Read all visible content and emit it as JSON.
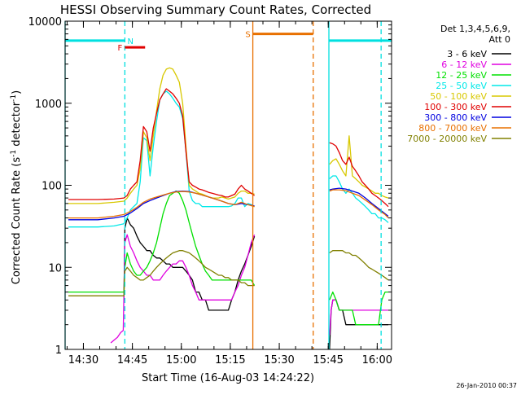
{
  "chart_data": {
    "type": "line",
    "title": "HESSI Observing Summary Count Rates, Corrected",
    "xlabel": "Start Time (16-Aug-03 14:24:22)",
    "ylabel_main": "Corrected Count Rate (s",
    "ylabel_sup1": "-1",
    "ylabel_mid": " detector",
    "ylabel_sup2": "-1",
    "ylabel_end": ")",
    "xlim_minutes": [
      0,
      100
    ],
    "ylim": [
      1,
      10000
    ],
    "y_scale": "log",
    "grid": false,
    "legend_placement": "right",
    "x_ticks": [
      {
        "label": "14:30",
        "x": 5.6
      },
      {
        "label": "14:45",
        "x": 20.6
      },
      {
        "label": "15:00",
        "x": 35.6
      },
      {
        "label": "15:15",
        "x": 50.6
      },
      {
        "label": "15:30",
        "x": 65.6
      },
      {
        "label": "15:45",
        "x": 80.6
      },
      {
        "label": "16:00",
        "x": 95.6
      }
    ],
    "y_ticks": [
      {
        "label": "1",
        "value": 1
      },
      {
        "label": "10",
        "value": 10
      },
      {
        "label": "100",
        "value": 100
      },
      {
        "label": "1000",
        "value": 1000
      },
      {
        "label": "10000",
        "value": 10000
      }
    ],
    "legend": {
      "header1": "Det 1,3,4,5,6,9,",
      "header2": "Att 0",
      "entries": [
        {
          "label": "3 - 6 keV",
          "color": "#000000"
        },
        {
          "label": "6 - 12 keV",
          "color": "#e000e0"
        },
        {
          "label": "12 - 25 keV",
          "color": "#00e000"
        },
        {
          "label": "25 - 50 keV",
          "color": "#00e8e8"
        },
        {
          "label": "50 - 100 keV",
          "color": "#d8c800"
        },
        {
          "label": "100 - 300 keV",
          "color": "#e00000"
        },
        {
          "label": "300 - 800 keV",
          "color": "#0000e0"
        },
        {
          "label": "800 - 7000 keV",
          "color": "#e87000"
        },
        {
          "label": "7000 - 20000 keV",
          "color": "#808000"
        }
      ]
    },
    "flags": [
      {
        "label": "N",
        "color": "#00e0e0",
        "x1": 0,
        "x2": 18.3,
        "y": 5800,
        "label_x": 20.0
      },
      {
        "label": "N",
        "color": "#00e0e0",
        "x1": 80.8,
        "x2": 100,
        "y": 5800,
        "label_x": null
      },
      {
        "label": "F",
        "color": "#e00000",
        "x1": 18.3,
        "x2": 24.5,
        "y": 4800,
        "label_x": 16.8
      },
      {
        "label": "S",
        "color": "#e87000",
        "x1": 57.5,
        "x2": 76.0,
        "y": 7000,
        "label_x": 56.0
      }
    ],
    "vlines": [
      {
        "x": 0.0,
        "color": "#00e0e0",
        "dashed": false
      },
      {
        "x": 18.3,
        "color": "#00e0e0",
        "dashed": true
      },
      {
        "x": 57.5,
        "color": "#e87000",
        "dashed": false
      },
      {
        "x": 76.0,
        "color": "#e87000",
        "dashed": true
      },
      {
        "x": 80.8,
        "color": "#00e0e0",
        "dashed": false
      },
      {
        "x": 96.8,
        "color": "#00e0e0",
        "dashed": true
      }
    ],
    "series": [
      {
        "name": "3 - 6 keV",
        "color": "#000000",
        "x": [
          1,
          18,
          18.3,
          19,
          20,
          21,
          22,
          23,
          24,
          25,
          26,
          27,
          28,
          29,
          30,
          31,
          32,
          33,
          34,
          35,
          36,
          37,
          38,
          39,
          40,
          41,
          42,
          43,
          44,
          45,
          46,
          47,
          48,
          49,
          50,
          51,
          52,
          53,
          54,
          55,
          56,
          57,
          58,
          81,
          81.5,
          82,
          83,
          84,
          85,
          86,
          87,
          88,
          89,
          90,
          91,
          92,
          93,
          94,
          95,
          96,
          97,
          98,
          99
        ],
        "y": [
          4,
          4,
          30,
          40,
          33,
          30,
          24,
          20,
          18,
          16,
          16,
          14,
          13,
          13,
          12,
          11,
          11,
          10,
          10,
          10,
          10,
          9,
          8,
          7,
          5,
          5,
          4,
          4,
          3,
          3,
          3,
          3,
          3,
          3,
          3,
          4,
          5,
          7,
          9,
          11,
          14,
          18,
          24,
          1,
          3,
          4,
          4,
          3,
          3,
          2,
          2,
          2,
          2,
          2,
          2,
          2,
          2,
          2,
          2,
          2,
          2,
          2,
          2
        ]
      },
      {
        "name": "6 - 12 keV",
        "color": "#e000e0",
        "x": [
          14,
          15,
          16,
          17,
          17.8,
          18.3,
          19,
          20,
          21,
          22,
          23,
          24,
          25,
          26,
          27,
          28,
          29,
          30,
          31,
          32,
          33,
          34,
          35,
          36,
          37,
          38,
          39,
          40,
          41,
          42,
          43,
          44,
          45,
          46,
          47,
          48,
          49,
          50,
          51,
          52,
          53,
          54,
          55,
          56,
          57,
          58,
          81,
          81.5,
          82,
          83,
          84,
          85,
          86,
          87,
          88,
          89,
          90,
          91,
          92,
          93,
          94,
          95,
          96,
          97,
          98,
          99
        ],
        "y": [
          1.2,
          1.3,
          1.4,
          1.6,
          1.7,
          20,
          25,
          18,
          15,
          12,
          10,
          9,
          8,
          8,
          7,
          7,
          7,
          8,
          9,
          10,
          11,
          11,
          12,
          12,
          10,
          8,
          6,
          5,
          4,
          4,
          4,
          4,
          4,
          4,
          4,
          4,
          4,
          4,
          4,
          5,
          6,
          8,
          10,
          14,
          20,
          25,
          1.5,
          3,
          4,
          4,
          3,
          3,
          3,
          3,
          3,
          3,
          3,
          3,
          3,
          3,
          3,
          3,
          3,
          3,
          3,
          3
        ]
      },
      {
        "name": "12 - 25 keV",
        "color": "#00e000",
        "x": [
          1,
          10,
          18,
          18.3,
          19,
          20,
          21,
          22,
          23,
          24,
          25,
          26,
          27,
          28,
          29,
          30,
          31,
          32,
          33,
          34,
          35,
          36,
          37,
          38,
          39,
          40,
          41,
          42,
          43,
          44,
          45,
          46,
          47,
          48,
          49,
          50,
          51,
          52,
          53,
          54,
          55,
          56,
          57,
          58,
          81,
          82,
          83,
          84,
          85,
          86,
          87,
          88,
          89,
          90,
          91,
          92,
          93,
          94,
          95,
          96,
          97,
          98,
          99
        ],
        "y": [
          5,
          5,
          5,
          10,
          15,
          11,
          9,
          8,
          8,
          9,
          10,
          12,
          15,
          20,
          30,
          45,
          60,
          75,
          80,
          85,
          80,
          65,
          50,
          35,
          25,
          18,
          14,
          11,
          9,
          8,
          7,
          7,
          7,
          7,
          7,
          7,
          7,
          7,
          7,
          7,
          7,
          7,
          7,
          6,
          4,
          5,
          4,
          3,
          3,
          3,
          3,
          3,
          2,
          2,
          2,
          2,
          2,
          2,
          2,
          2,
          4,
          5,
          5
        ]
      },
      {
        "name": "25 - 50 keV",
        "color": "#00e8e8",
        "x": [
          1,
          5,
          10,
          15,
          18,
          19,
          20,
          21,
          22,
          23,
          24,
          25,
          26,
          27,
          28,
          29,
          30,
          31,
          32,
          33,
          34,
          35,
          36,
          37,
          38,
          39,
          40,
          41,
          42,
          43,
          44,
          45,
          46,
          47,
          48,
          49,
          50,
          51,
          52,
          53,
          54,
          55,
          56,
          57,
          58,
          81,
          82,
          83,
          84,
          85,
          86,
          87,
          88,
          89,
          90,
          91,
          92,
          93,
          94,
          95,
          96,
          97,
          98,
          99
        ],
        "y": [
          31,
          31,
          31,
          32,
          34,
          40,
          50,
          55,
          60,
          110,
          380,
          350,
          130,
          300,
          600,
          1100,
          1300,
          1400,
          1300,
          1150,
          1000,
          900,
          650,
          260,
          85,
          65,
          60,
          60,
          55,
          55,
          55,
          55,
          55,
          55,
          55,
          55,
          55,
          56,
          60,
          70,
          70,
          55,
          60,
          58,
          55,
          120,
          130,
          130,
          110,
          90,
          80,
          90,
          80,
          70,
          65,
          60,
          55,
          50,
          45,
          45,
          40,
          40,
          38,
          35
        ]
      },
      {
        "name": "50 - 100 keV",
        "color": "#d8c800",
        "x": [
          1,
          5,
          10,
          15,
          18,
          19,
          20,
          21,
          22,
          23,
          24,
          25,
          26,
          27,
          28,
          29,
          30,
          31,
          32,
          33,
          34,
          35,
          36,
          37,
          38,
          39,
          40,
          41,
          42,
          43,
          44,
          45,
          46,
          47,
          48,
          49,
          50,
          51,
          52,
          53,
          54,
          55,
          56,
          57,
          58,
          81,
          82,
          83,
          84,
          85,
          86,
          87,
          88,
          89,
          90,
          91,
          92,
          93,
          94,
          95,
          96,
          97,
          98,
          99
        ],
        "y": [
          60,
          60,
          60,
          62,
          64,
          70,
          80,
          90,
          100,
          160,
          450,
          380,
          200,
          400,
          800,
          1500,
          2200,
          2600,
          2700,
          2600,
          2200,
          1800,
          1000,
          300,
          100,
          90,
          85,
          80,
          78,
          75,
          72,
          70,
          70,
          70,
          72,
          70,
          68,
          70,
          72,
          80,
          85,
          85,
          80,
          80,
          78,
          180,
          200,
          210,
          180,
          150,
          130,
          400,
          130,
          120,
          110,
          100,
          95,
          90,
          85,
          80,
          80,
          75,
          72,
          70
        ]
      },
      {
        "name": "100 - 300 keV",
        "color": "#e00000",
        "x": [
          1,
          5,
          10,
          15,
          18,
          19,
          20,
          21,
          22,
          23,
          24,
          25,
          26,
          27,
          28,
          29,
          30,
          31,
          32,
          33,
          34,
          35,
          36,
          37,
          38,
          39,
          40,
          41,
          42,
          43,
          44,
          45,
          46,
          47,
          48,
          49,
          50,
          51,
          52,
          53,
          54,
          55,
          56,
          57,
          58,
          81,
          82,
          83,
          84,
          85,
          86,
          87,
          88,
          89,
          90,
          91,
          92,
          93,
          94,
          95,
          96,
          97,
          98,
          99
        ],
        "y": [
          67,
          67,
          67,
          68,
          70,
          75,
          90,
          100,
          110,
          200,
          520,
          450,
          260,
          500,
          750,
          1100,
          1300,
          1500,
          1400,
          1300,
          1150,
          1000,
          700,
          260,
          110,
          100,
          95,
          90,
          88,
          85,
          82,
          80,
          78,
          76,
          75,
          72,
          72,
          75,
          78,
          90,
          100,
          90,
          85,
          80,
          75,
          330,
          320,
          300,
          250,
          200,
          180,
          220,
          170,
          150,
          130,
          110,
          100,
          90,
          80,
          75,
          70,
          65,
          60,
          55
        ]
      },
      {
        "name": "300 - 800 keV",
        "color": "#0000e0",
        "x": [
          1,
          5,
          10,
          15,
          18,
          20,
          22,
          24,
          26,
          28,
          30,
          32,
          34,
          36,
          38,
          40,
          42,
          44,
          46,
          48,
          50,
          52,
          54,
          56,
          58,
          81,
          82,
          84,
          86,
          88,
          90,
          92,
          94,
          96,
          98,
          99
        ],
        "y": [
          38,
          38,
          38,
          40,
          42,
          46,
          52,
          60,
          65,
          70,
          75,
          80,
          84,
          85,
          84,
          80,
          76,
          72,
          68,
          64,
          60,
          58,
          60,
          58,
          56,
          88,
          90,
          92,
          90,
          85,
          80,
          70,
          60,
          52,
          45,
          42
        ]
      },
      {
        "name": "800 - 7000 keV",
        "color": "#e87000",
        "x": [
          1,
          5,
          10,
          15,
          18,
          20,
          22,
          24,
          26,
          28,
          30,
          32,
          34,
          36,
          38,
          40,
          42,
          44,
          46,
          48,
          50,
          52,
          54,
          56,
          58,
          81,
          82,
          84,
          86,
          88,
          90,
          92,
          94,
          96,
          98,
          99
        ],
        "y": [
          40,
          40,
          40,
          42,
          44,
          48,
          54,
          62,
          68,
          72,
          76,
          80,
          83,
          84,
          83,
          80,
          76,
          72,
          68,
          64,
          60,
          58,
          62,
          58,
          55,
          85,
          88,
          88,
          86,
          80,
          75,
          66,
          58,
          50,
          44,
          40
        ]
      },
      {
        "name": "7000 - 20000 keV",
        "color": "#808000",
        "x": [
          1,
          5,
          10,
          15,
          17,
          18,
          18.3,
          19,
          20,
          21,
          22,
          23,
          24,
          25,
          26,
          27,
          28,
          29,
          30,
          31,
          32,
          33,
          34,
          35,
          36,
          37,
          38,
          39,
          40,
          41,
          42,
          43,
          44,
          45,
          46,
          47,
          48,
          49,
          50,
          51,
          52,
          53,
          54,
          55,
          56,
          57,
          58,
          81,
          82,
          83,
          84,
          85,
          86,
          87,
          88,
          89,
          90,
          91,
          92,
          93,
          94,
          95,
          96,
          97,
          98,
          99
        ],
        "y": [
          4.5,
          4.5,
          4.5,
          4.5,
          4.5,
          4.5,
          9,
          10,
          9,
          8,
          7.5,
          7,
          7,
          7.5,
          8,
          9,
          10,
          11,
          12,
          13,
          14,
          15,
          15.5,
          16,
          16,
          15.5,
          15,
          14,
          13,
          12,
          11,
          10,
          9.5,
          9,
          8.5,
          8,
          8,
          7.5,
          7.5,
          7,
          7,
          7,
          6.5,
          6.5,
          6,
          6,
          6,
          15,
          16,
          16,
          16,
          16,
          15,
          15,
          14,
          14,
          13,
          12,
          11,
          10,
          9.5,
          9,
          8.5,
          8,
          7.5,
          7
        ]
      }
    ],
    "footer_date": "26-Jan-2010 00:37"
  }
}
